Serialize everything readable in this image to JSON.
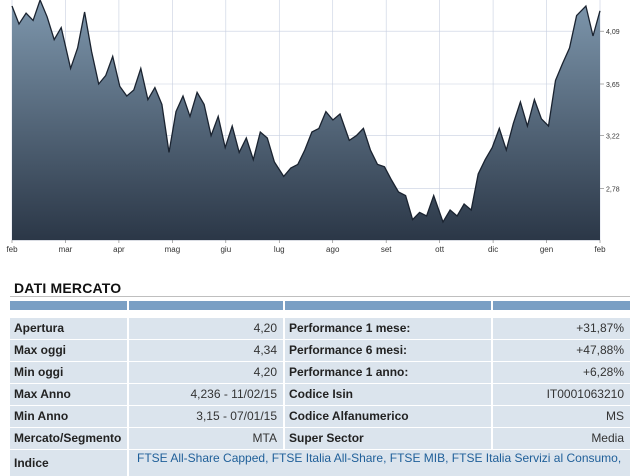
{
  "chart_data": {
    "type": "area",
    "x_ticks": [
      "feb",
      "mar",
      "apr",
      "mag",
      "giu",
      "lug",
      "ago",
      "set",
      "ott",
      "dic",
      "gen",
      "feb"
    ],
    "y_ticks": [
      "4,09",
      "3,65",
      "3,22",
      "2,78"
    ],
    "ylim": [
      2.35,
      4.35
    ],
    "grid": true,
    "x": [
      0,
      3,
      6,
      9,
      12,
      15,
      18,
      21,
      25,
      28,
      31,
      34,
      37,
      40,
      43,
      46,
      49,
      52,
      55,
      58,
      61,
      64,
      67,
      70,
      73,
      76,
      79,
      82,
      85,
      88,
      91,
      94,
      97,
      100,
      103,
      106,
      109,
      112,
      116,
      119,
      122,
      125,
      128,
      131,
      134,
      137,
      140,
      144,
      147,
      150,
      153,
      156,
      159,
      162,
      165,
      168,
      171,
      174,
      177,
      180,
      184,
      187,
      190,
      193,
      196,
      199,
      202,
      205,
      208,
      211,
      214,
      217,
      220,
      223,
      226,
      229,
      232,
      235,
      238,
      241,
      245,
      248,
      251
    ],
    "values": [
      4.3,
      4.15,
      4.24,
      4.18,
      4.35,
      4.21,
      4.02,
      4.12,
      3.78,
      3.95,
      4.25,
      3.92,
      3.65,
      3.72,
      3.88,
      3.63,
      3.55,
      3.6,
      3.78,
      3.52,
      3.62,
      3.48,
      3.08,
      3.42,
      3.55,
      3.38,
      3.58,
      3.48,
      3.22,
      3.38,
      3.12,
      3.3,
      3.08,
      3.2,
      3.02,
      3.25,
      3.2,
      3.0,
      2.88,
      2.95,
      2.98,
      3.1,
      3.25,
      3.28,
      3.42,
      3.35,
      3.4,
      3.18,
      3.22,
      3.28,
      3.1,
      2.98,
      2.96,
      2.85,
      2.75,
      2.72,
      2.52,
      2.58,
      2.55,
      2.72,
      2.5,
      2.6,
      2.55,
      2.65,
      2.6,
      2.9,
      3.02,
      3.12,
      3.28,
      3.1,
      3.32,
      3.5,
      3.3,
      3.52,
      3.36,
      3.3,
      3.68,
      3.82,
      3.95,
      4.22,
      4.3,
      4.05,
      4.26
    ]
  },
  "market": {
    "title": "DATI MERCATO",
    "rows": [
      {
        "l1": "Apertura",
        "v1": "4,20",
        "l2": "Performance 1 mese:",
        "v2": "+31,87%"
      },
      {
        "l1": "Max oggi",
        "v1": "4,34",
        "l2": "Performance 6 mesi:",
        "v2": "+47,88%"
      },
      {
        "l1": "Min oggi",
        "v1": "4,20",
        "l2": "Performance 1 anno:",
        "v2": "+6,28%"
      },
      {
        "l1": "Max Anno",
        "v1": "4,236 - 11/02/15",
        "l2": "Codice Isin",
        "v2": "IT0001063210"
      },
      {
        "l1": "Min Anno",
        "v1": "3,15 - 07/01/15",
        "l2": "Codice Alfanumerico",
        "v2": "MS"
      },
      {
        "l1": "Mercato/Segmento",
        "v1": "MTA",
        "l2": "Super Sector",
        "v2": "Media"
      }
    ],
    "last_row": {
      "label": "Indice",
      "value": "FTSE All-Share Capped, FTSE Italia All-Share, FTSE MIB, FTSE Italia Servizi al Consumo,"
    }
  },
  "colors": {
    "area_top": "#7e97ad",
    "area_bottom": "#2b3747",
    "line": "#1a2330",
    "grid": "#c7cfe0",
    "header_bar": "#7a9fc4",
    "row_bg": "#dbe4ed",
    "link": "#1f5f99"
  }
}
